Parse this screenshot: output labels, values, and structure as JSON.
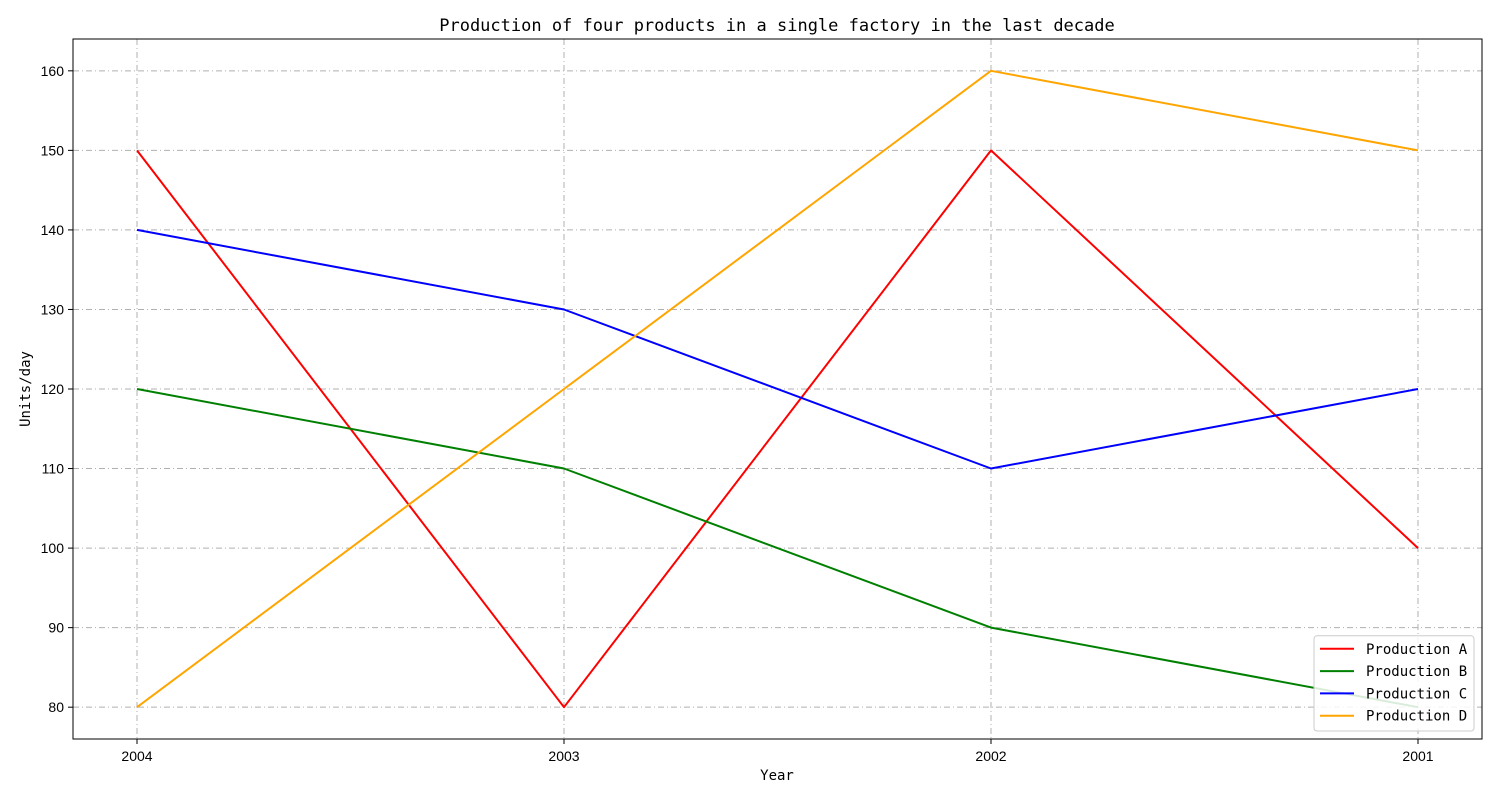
{
  "chart_data": {
    "type": "line",
    "title": "Production of four products in a single factory in the last decade",
    "xlabel": "Year",
    "ylabel": "Units/day",
    "categories": [
      "2004",
      "2003",
      "2002",
      "2001"
    ],
    "ylim": [
      76,
      164
    ],
    "yticks": [
      80,
      90,
      100,
      110,
      120,
      130,
      140,
      150,
      160
    ],
    "grid": true,
    "legend_position": "lower-right",
    "series": [
      {
        "name": "Production A",
        "color": "#ff0000",
        "values": [
          150,
          80,
          150,
          100
        ]
      },
      {
        "name": "Production B",
        "color": "#008000",
        "values": [
          120,
          110,
          90,
          80
        ]
      },
      {
        "name": "Production C",
        "color": "#0000ff",
        "values": [
          140,
          130,
          110,
          120
        ]
      },
      {
        "name": "Production D",
        "color": "#ffa500",
        "values": [
          80,
          120,
          160,
          150
        ]
      }
    ]
  }
}
